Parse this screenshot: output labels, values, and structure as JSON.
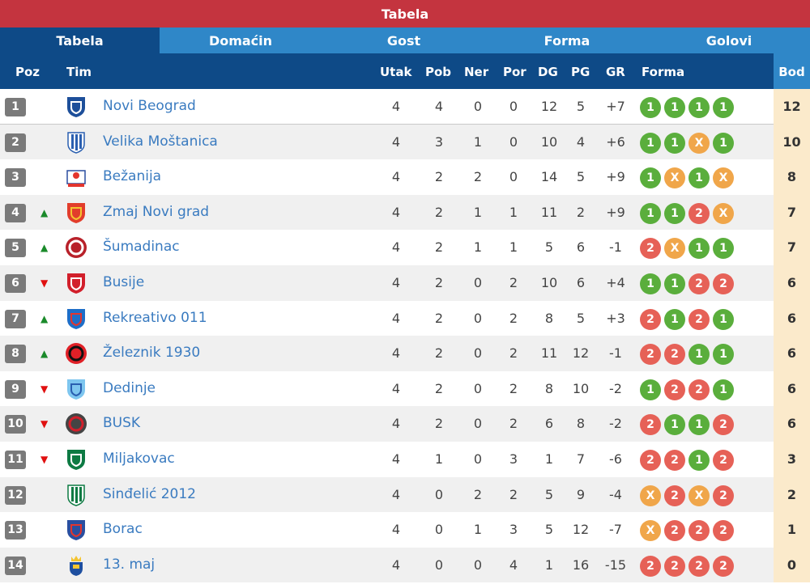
{
  "title": "Tabela",
  "tabs": [
    "Tabela",
    "Domaćin",
    "Gost",
    "Forma",
    "Golovi"
  ],
  "columns": {
    "poz": "Poz",
    "tim": "Tim",
    "utak": "Utak",
    "pob": "Pob",
    "ner": "Ner",
    "por": "Por",
    "dg": "DG",
    "pg": "PG",
    "gr": "GR",
    "forma": "Forma",
    "bod": "Bod"
  },
  "colors": {
    "win": "#5aae3c",
    "draw": "#f0a64a",
    "loss": "#e66157",
    "header": "#0e4a87",
    "title": "#c4343f"
  },
  "rows": [
    {
      "pos": "1",
      "trend": "",
      "team": "Novi Beograd",
      "utak": "4",
      "pob": "4",
      "ner": "0",
      "por": "0",
      "dg": "12",
      "pg": "5",
      "gr": "+7",
      "form": [
        "1",
        "1",
        "1",
        "1"
      ],
      "bod": "12"
    },
    {
      "pos": "2",
      "trend": "",
      "team": "Velika Moštanica",
      "utak": "4",
      "pob": "3",
      "ner": "1",
      "por": "0",
      "dg": "10",
      "pg": "4",
      "gr": "+6",
      "form": [
        "1",
        "1",
        "X",
        "1"
      ],
      "bod": "10"
    },
    {
      "pos": "3",
      "trend": "",
      "team": "Bežanija",
      "utak": "4",
      "pob": "2",
      "ner": "2",
      "por": "0",
      "dg": "14",
      "pg": "5",
      "gr": "+9",
      "form": [
        "1",
        "X",
        "1",
        "X"
      ],
      "bod": "8"
    },
    {
      "pos": "4",
      "trend": "up",
      "team": "Zmaj Novi grad",
      "utak": "4",
      "pob": "2",
      "ner": "1",
      "por": "1",
      "dg": "11",
      "pg": "2",
      "gr": "+9",
      "form": [
        "1",
        "1",
        "2",
        "X"
      ],
      "bod": "7"
    },
    {
      "pos": "5",
      "trend": "up",
      "team": "Šumadinac",
      "utak": "4",
      "pob": "2",
      "ner": "1",
      "por": "1",
      "dg": "5",
      "pg": "6",
      "gr": "-1",
      "form": [
        "2",
        "X",
        "1",
        "1"
      ],
      "bod": "7"
    },
    {
      "pos": "6",
      "trend": "down",
      "team": "Busije",
      "utak": "4",
      "pob": "2",
      "ner": "0",
      "por": "2",
      "dg": "10",
      "pg": "6",
      "gr": "+4",
      "form": [
        "1",
        "1",
        "2",
        "2"
      ],
      "bod": "6"
    },
    {
      "pos": "7",
      "trend": "up",
      "team": "Rekreativo 011",
      "utak": "4",
      "pob": "2",
      "ner": "0",
      "por": "2",
      "dg": "8",
      "pg": "5",
      "gr": "+3",
      "form": [
        "2",
        "1",
        "2",
        "1"
      ],
      "bod": "6"
    },
    {
      "pos": "8",
      "trend": "up",
      "team": "Železnik 1930",
      "utak": "4",
      "pob": "2",
      "ner": "0",
      "por": "2",
      "dg": "11",
      "pg": "12",
      "gr": "-1",
      "form": [
        "2",
        "2",
        "1",
        "1"
      ],
      "bod": "6"
    },
    {
      "pos": "9",
      "trend": "down",
      "team": "Dedinje",
      "utak": "4",
      "pob": "2",
      "ner": "0",
      "por": "2",
      "dg": "8",
      "pg": "10",
      "gr": "-2",
      "form": [
        "1",
        "2",
        "2",
        "1"
      ],
      "bod": "6"
    },
    {
      "pos": "10",
      "trend": "down",
      "team": "BUSK",
      "utak": "4",
      "pob": "2",
      "ner": "0",
      "por": "2",
      "dg": "6",
      "pg": "8",
      "gr": "-2",
      "form": [
        "2",
        "1",
        "1",
        "2"
      ],
      "bod": "6"
    },
    {
      "pos": "11",
      "trend": "down",
      "team": "Miljakovac",
      "utak": "4",
      "pob": "1",
      "ner": "0",
      "por": "3",
      "dg": "1",
      "pg": "7",
      "gr": "-6",
      "form": [
        "2",
        "2",
        "1",
        "2"
      ],
      "bod": "3"
    },
    {
      "pos": "12",
      "trend": "",
      "team": "Sinđelić 2012",
      "utak": "4",
      "pob": "0",
      "ner": "2",
      "por": "2",
      "dg": "5",
      "pg": "9",
      "gr": "-4",
      "form": [
        "X",
        "2",
        "X",
        "2"
      ],
      "bod": "2"
    },
    {
      "pos": "13",
      "trend": "",
      "team": "Borac",
      "utak": "4",
      "pob": "0",
      "ner": "1",
      "por": "3",
      "dg": "5",
      "pg": "12",
      "gr": "-7",
      "form": [
        "X",
        "2",
        "2",
        "2"
      ],
      "bod": "1"
    },
    {
      "pos": "14",
      "trend": "",
      "team": "13. maj",
      "utak": "4",
      "pob": "0",
      "ner": "0",
      "por": "4",
      "dg": "1",
      "pg": "16",
      "gr": "-15",
      "form": [
        "2",
        "2",
        "2",
        "2"
      ],
      "bod": "0"
    }
  ]
}
